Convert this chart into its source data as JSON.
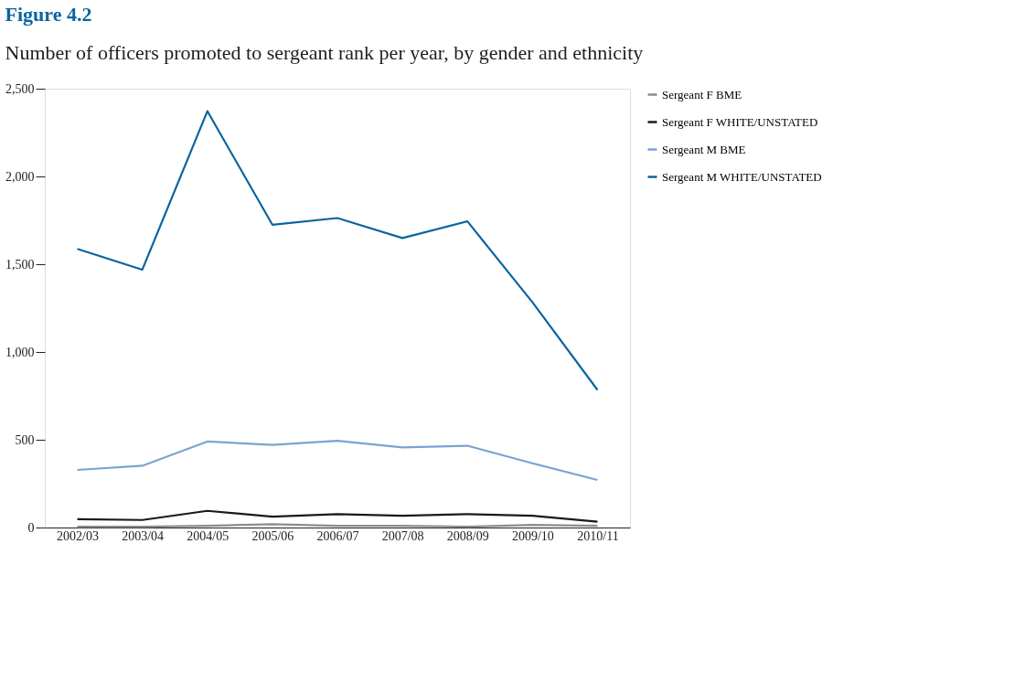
{
  "chart_data": {
    "type": "line",
    "title": "Figure 4.2",
    "subtitle": "Number of officers promoted to sergeant rank per year, by gender and ethnicity",
    "categories": [
      "2002/03",
      "2003/04",
      "2004/05",
      "2005/06",
      "2006/07",
      "2007/08",
      "2008/09",
      "2009/10",
      "2010/11"
    ],
    "series": [
      {
        "name": "Sergeant F BME",
        "color": "#8c8c8c",
        "values": [
          5,
          5,
          10,
          19,
          10,
          10,
          5,
          15,
          10
        ]
      },
      {
        "name": "Sergeant F WHITE/UNSTATED",
        "color": "#1a1a1a",
        "values": [
          48,
          43,
          95,
          62,
          76,
          67,
          76,
          67,
          33
        ]
      },
      {
        "name": "Sergeant M BME",
        "color": "#7ba3d0",
        "values": [
          328,
          352,
          490,
          471,
          494,
          456,
          466,
          366,
          271
        ]
      },
      {
        "name": "Sergeant M WHITE/UNSTATED",
        "color": "#0a64a0",
        "values": [
          1587,
          1469,
          2372,
          1725,
          1763,
          1649,
          1744,
          1283,
          784
        ]
      }
    ],
    "ylim": [
      0,
      2500
    ],
    "yticks": [
      0,
      {
        "value": 500,
        "label": "500"
      },
      {
        "value": 1000,
        "label": "1,000"
      },
      {
        "value": 1500,
        "label": "1,500"
      },
      {
        "value": 2000,
        "label": "2,000"
      },
      {
        "value": 2500,
        "label": "2,500"
      }
    ],
    "grid": false,
    "legend": "right",
    "marker": "none",
    "line_style": "solid"
  }
}
